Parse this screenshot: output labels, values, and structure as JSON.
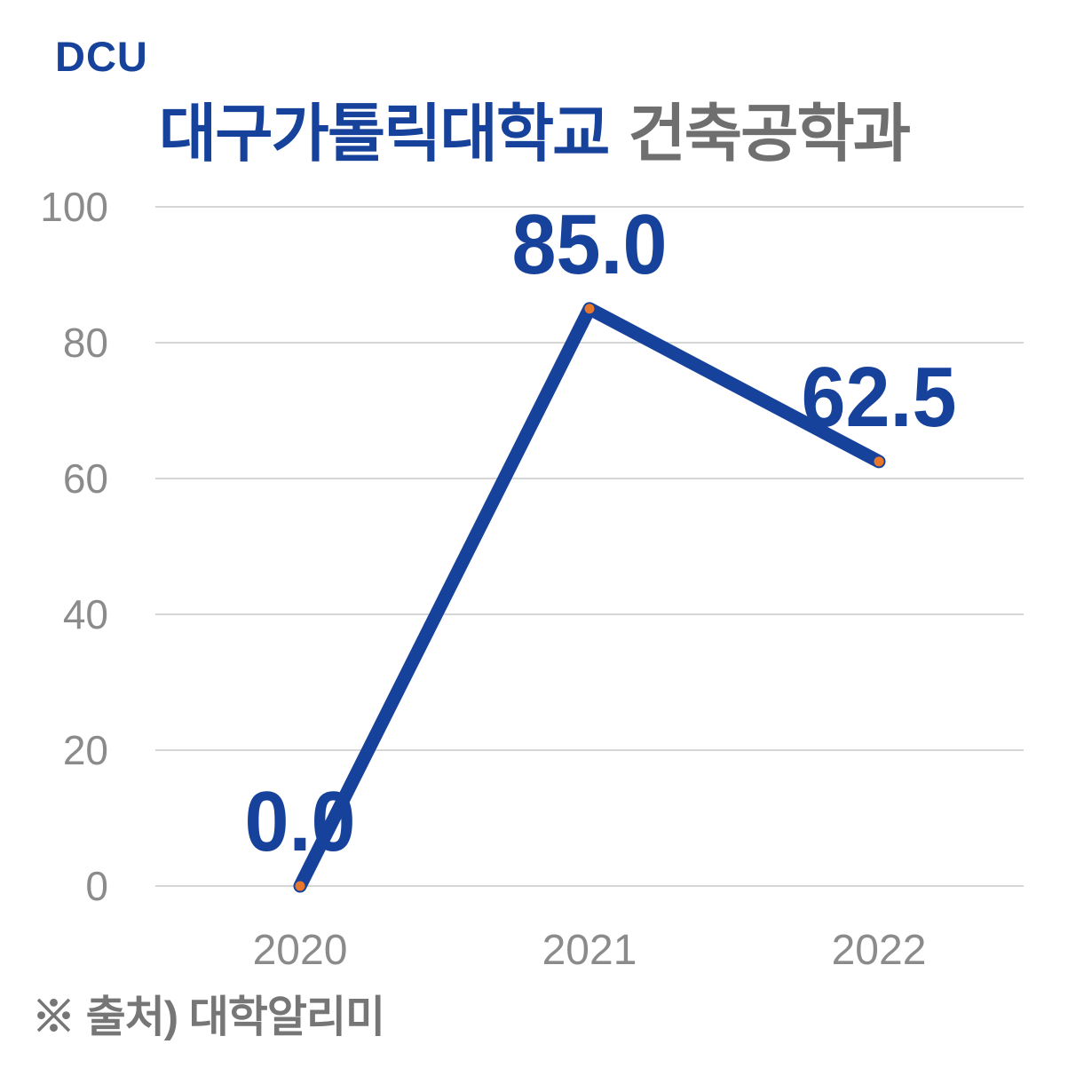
{
  "logo": {
    "text": "DCU"
  },
  "title": {
    "university": "대구가톨릭대학교",
    "department": "건축공학과"
  },
  "footer": {
    "source_note": "※ 출처) 대학알리미"
  },
  "colors": {
    "accent_blue": "#16429B",
    "title_gray": "#6F6F6F",
    "axis_gray": "#8B8B8B",
    "gridline": "#D6D6D6",
    "marker_orange": "#E8772E",
    "footer_gray": "#767676",
    "background": "#FFFFFF"
  },
  "chart_data": {
    "type": "line",
    "title": "대구가톨릭대학교 건축공학과",
    "categories": [
      "2020",
      "2021",
      "2022"
    ],
    "values": [
      0.0,
      85.0,
      62.5
    ],
    "point_labels": [
      "0.0",
      "85.0",
      "62.5"
    ],
    "xlabel": "",
    "ylabel": "",
    "ylim": [
      0,
      100
    ],
    "yticks": [
      0,
      20,
      40,
      60,
      80,
      100
    ],
    "grid": true,
    "legend": "none",
    "line_color": "#16429B",
    "marker_color": "#E8772E",
    "label_color": "#16429B"
  }
}
